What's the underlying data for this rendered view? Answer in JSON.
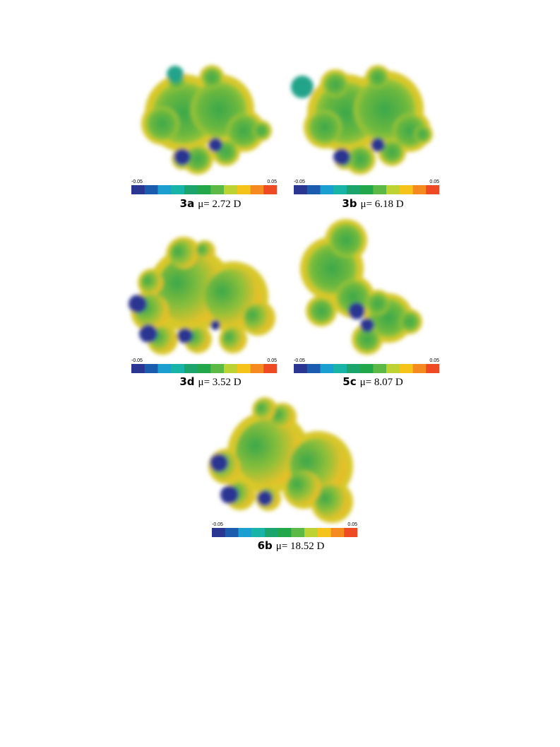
{
  "figure": {
    "panels": [
      {
        "label": "3a",
        "dipole": "μ= 2.72 D",
        "scale_min": -0.05,
        "scale_max": 0.05
      },
      {
        "label": "3b",
        "dipole": "μ= 6.18 D",
        "scale_min": -0.05,
        "scale_max": 0.05
      },
      {
        "label": "3d",
        "dipole": "μ= 3.52 D",
        "scale_min": -0.05,
        "scale_max": 0.05
      },
      {
        "label": "5c",
        "dipole": "μ= 8.07 D",
        "scale_min": -0.05,
        "scale_max": 0.05
      },
      {
        "label": "6b",
        "dipole": "μ= 18.52 D",
        "scale_min": -0.05,
        "scale_max": 0.05
      }
    ]
  }
}
